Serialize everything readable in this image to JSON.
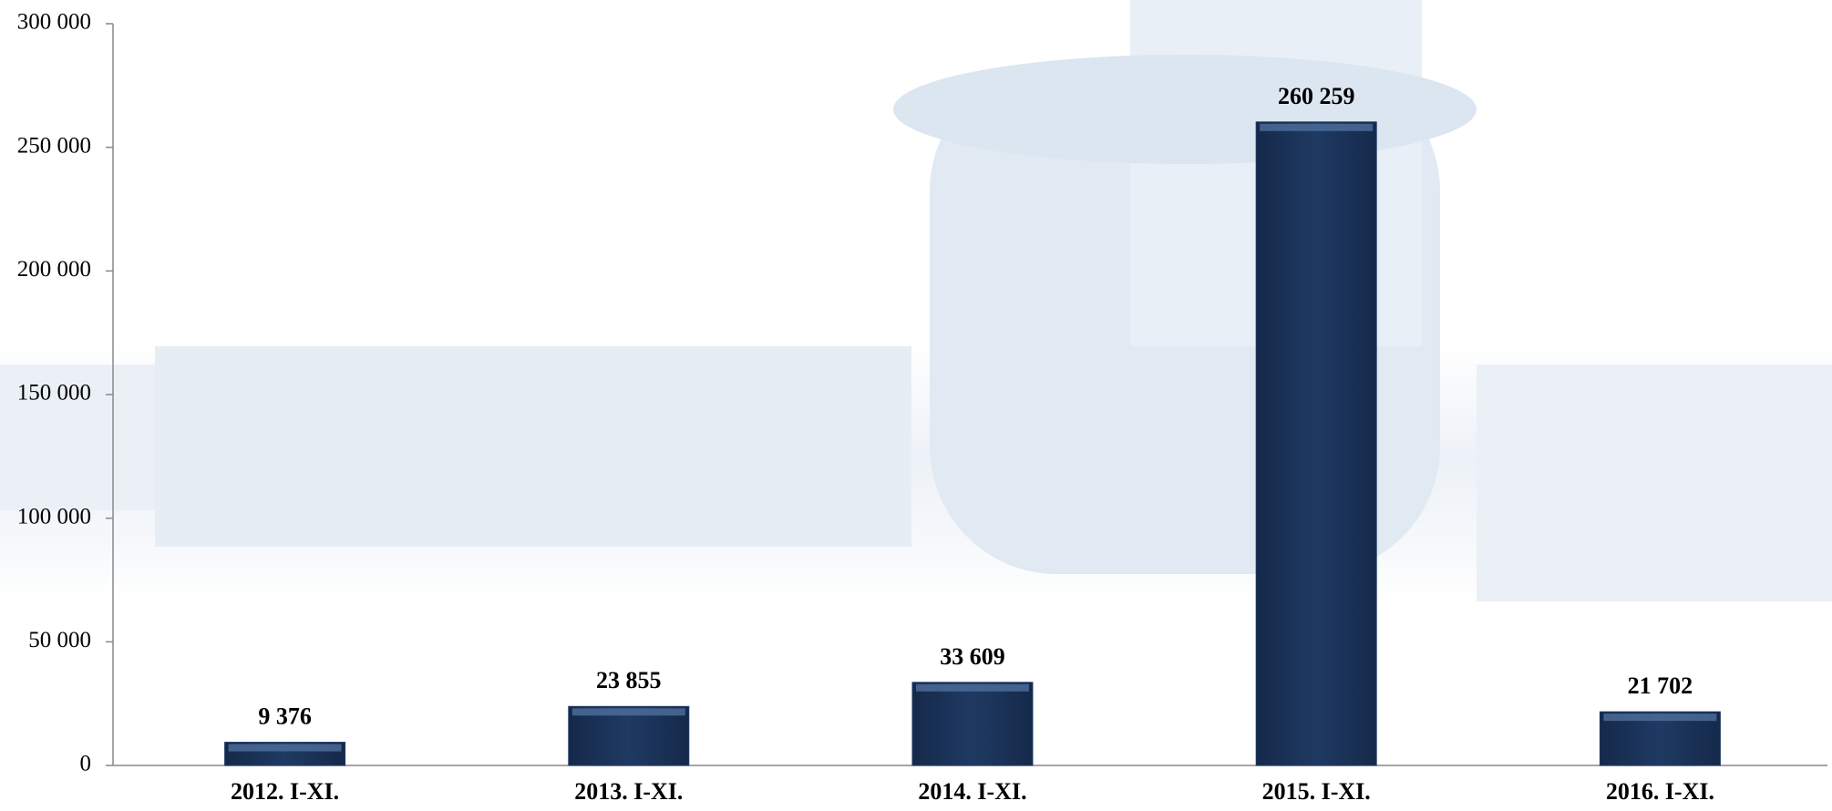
{
  "chart_data": {
    "type": "bar",
    "categories": [
      "2012. I-XI.",
      "2013. I-XI.",
      "2014. I-XI.",
      "2015. I-XI.",
      "2016. I-XI."
    ],
    "values": [
      9376,
      23855,
      33609,
      260259,
      21702
    ],
    "value_labels": [
      "9 376",
      "23 855",
      "33 609",
      "260 259",
      "21 702"
    ],
    "color": "#1f3a63",
    "ylim": [
      0,
      300000
    ],
    "yticks": [
      0,
      {
        "value": 50000,
        "label": "50 000"
      },
      {
        "value": 100000,
        "label": "100 000"
      },
      {
        "value": 150000,
        "label": "150 000"
      },
      {
        "value": 200000,
        "label": "200 000"
      },
      {
        "value": 250000,
        "label": "250 000"
      },
      {
        "value": 300000,
        "label": "300 000"
      }
    ],
    "grid": false
  }
}
